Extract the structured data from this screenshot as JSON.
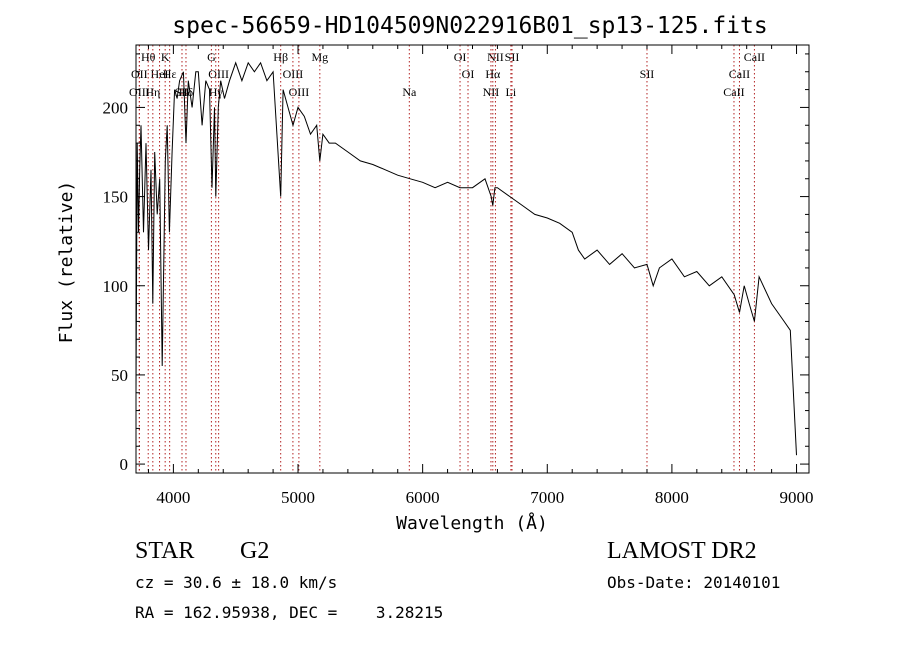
{
  "chart_data": {
    "type": "line",
    "title": "spec-56659-HD104509N022916B01_sp13-125.fits",
    "xlabel": "Wavelength (Å)",
    "ylabel": "Flux (relative)",
    "xlim": [
      3700,
      9100
    ],
    "ylim": [
      -5,
      235
    ],
    "xticks": [
      4000,
      5000,
      6000,
      7000,
      8000,
      9000
    ],
    "yticks": [
      0,
      50,
      100,
      150,
      200
    ],
    "xtick_labels": [
      "4000",
      "5000",
      "6000",
      "7000",
      "8000",
      "9000"
    ],
    "ytick_labels": [
      "0",
      "50",
      "100",
      "150",
      "200"
    ],
    "grid": false,
    "line_color": "#000000",
    "marker_color": "#b22222",
    "series": [
      {
        "x": [
          3700,
          3710,
          3720,
          3730,
          3740,
          3760,
          3780,
          3800,
          3820,
          3835,
          3850,
          3870,
          3890,
          3910,
          3935,
          3950,
          3968,
          3990,
          4010,
          4030,
          4050,
          4080,
          4101,
          4120,
          4150,
          4180,
          4200,
          4230,
          4260,
          4290,
          4310,
          4330,
          4340,
          4360,
          4380,
          4410,
          4450,
          4500,
          4550,
          4600,
          4650,
          4700,
          4750,
          4800,
          4861,
          4880,
          4920,
          4960,
          5000,
          5050,
          5100,
          5150,
          5175,
          5200,
          5250,
          5300,
          5400,
          5500,
          5600,
          5700,
          5800,
          5900,
          6000,
          6100,
          6200,
          6300,
          6400,
          6500,
          6550,
          6563,
          6580,
          6600,
          6700,
          6800,
          6900,
          7000,
          7100,
          7200,
          7250,
          7300,
          7400,
          7500,
          7600,
          7700,
          7800,
          7850,
          7900,
          8000,
          8100,
          8200,
          8300,
          8400,
          8500,
          8542,
          8580,
          8620,
          8662,
          8700,
          8800,
          8900,
          8950,
          9000
        ],
        "y": [
          40,
          180,
          130,
          165,
          190,
          130,
          180,
          120,
          165,
          90,
          175,
          140,
          160,
          55,
          170,
          190,
          130,
          175,
          210,
          205,
          215,
          220,
          180,
          215,
          200,
          220,
          220,
          190,
          215,
          210,
          155,
          200,
          150,
          200,
          215,
          205,
          215,
          225,
          215,
          225,
          220,
          225,
          215,
          220,
          150,
          210,
          200,
          190,
          200,
          195,
          185,
          190,
          170,
          185,
          180,
          180,
          175,
          170,
          168,
          165,
          162,
          160,
          158,
          155,
          158,
          155,
          155,
          160,
          150,
          145,
          155,
          155,
          150,
          145,
          140,
          138,
          135,
          130,
          120,
          115,
          120,
          112,
          118,
          110,
          112,
          100,
          110,
          115,
          105,
          108,
          100,
          105,
          95,
          85,
          100,
          90,
          80,
          105,
          90,
          80,
          75,
          5
        ]
      }
    ],
    "line_markers": [
      {
        "label": "Hθ",
        "x": 3798,
        "row": 1
      },
      {
        "label": "K",
        "x": 3934,
        "row": 1
      },
      {
        "label": "G",
        "x": 4305,
        "row": 1
      },
      {
        "label": "Hβ",
        "x": 4861,
        "row": 1
      },
      {
        "label": "Mg",
        "x": 5175,
        "row": 1
      },
      {
        "label": "OI",
        "x": 6300,
        "row": 1
      },
      {
        "label": "NII",
        "x": 6584,
        "row": 1
      },
      {
        "label": "SII",
        "x": 6717,
        "row": 1
      },
      {
        "label": "CaII",
        "x": 8662,
        "row": 1
      },
      {
        "label": "OII",
        "x": 3727,
        "row": 2
      },
      {
        "label": "HeI",
        "x": 3889,
        "row": 2
      },
      {
        "label": "Hε",
        "x": 3970,
        "row": 2
      },
      {
        "label": "OIII",
        "x": 4363,
        "row": 2
      },
      {
        "label": "OIII",
        "x": 4959,
        "row": 2
      },
      {
        "label": "OI",
        "x": 6364,
        "row": 2
      },
      {
        "label": "Hα",
        "x": 6563,
        "row": 2
      },
      {
        "label": "SII",
        "x": 7800,
        "row": 2
      },
      {
        "label": "CaII",
        "x": 8542,
        "row": 2
      },
      {
        "label": "OIII",
        "x": 3727,
        "row": 3
      },
      {
        "label": "Hη",
        "x": 3835,
        "row": 3
      },
      {
        "label": "SII",
        "x": 4069,
        "row": 3
      },
      {
        "label": "Hδ",
        "x": 4101,
        "row": 3
      },
      {
        "label": "Hγ",
        "x": 4340,
        "row": 3
      },
      {
        "label": "OIII",
        "x": 5007,
        "row": 3
      },
      {
        "label": "Na",
        "x": 5893,
        "row": 3
      },
      {
        "label": "NII",
        "x": 6548,
        "row": 3
      },
      {
        "label": "Li",
        "x": 6708,
        "row": 3
      },
      {
        "label": "CaII",
        "x": 8498,
        "row": 3
      }
    ]
  },
  "footer": {
    "object_type": "STAR",
    "subclass": "G2",
    "survey": "LAMOST DR2",
    "cz": "cz = 30.6 ± 18.0 km/s",
    "obs_date": "Obs-Date: 20140101",
    "coords": "RA = 162.95938, DEC =    3.28215"
  }
}
